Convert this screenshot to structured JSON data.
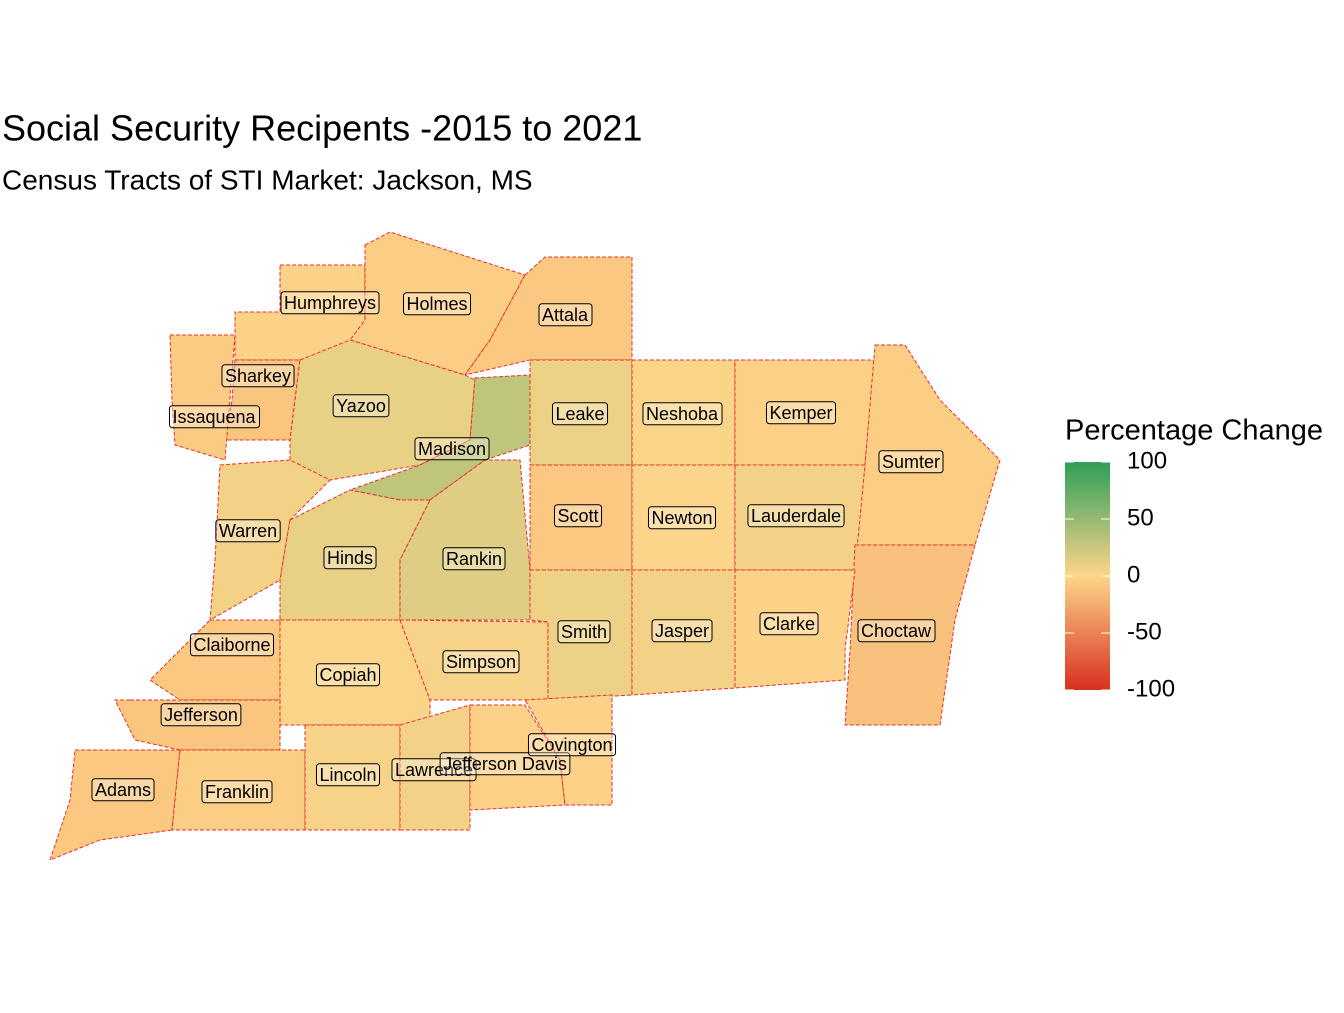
{
  "title": "Social Security Recipents -2015 to 2021",
  "subtitle": "Census Tracts of STI Market: Jackson, MS",
  "legend": {
    "title": "Percentage Change",
    "lim": [
      -100,
      100
    ],
    "ticks": [
      100,
      50,
      0,
      -50,
      -100
    ],
    "colors": {
      "low": "#d7301f",
      "mid": "#fdd58a",
      "high": "#2e9e58"
    }
  },
  "counties": [
    {
      "name": "Humphreys",
      "change": -2
    },
    {
      "name": "Holmes",
      "change": -5
    },
    {
      "name": "Attala",
      "change": -8
    },
    {
      "name": "Sharkey",
      "change": -10
    },
    {
      "name": "Issaquena",
      "change": -6
    },
    {
      "name": "Yazoo",
      "change": 10
    },
    {
      "name": "Madison",
      "change": 30
    },
    {
      "name": "Leake",
      "change": 8
    },
    {
      "name": "Neshoba",
      "change": 2
    },
    {
      "name": "Kemper",
      "change": -3
    },
    {
      "name": "Sumter",
      "change": -5
    },
    {
      "name": "Scott",
      "change": -8
    },
    {
      "name": "Newton",
      "change": 0
    },
    {
      "name": "Lauderdale",
      "change": 5
    },
    {
      "name": "Choctaw",
      "change": -12
    },
    {
      "name": "Warren",
      "change": 5
    },
    {
      "name": "Hinds",
      "change": 10
    },
    {
      "name": "Rankin",
      "change": 15
    },
    {
      "name": "Claiborne",
      "change": -8
    },
    {
      "name": "Copiah",
      "change": 2
    },
    {
      "name": "Simpson",
      "change": 3
    },
    {
      "name": "Smith",
      "change": 8
    },
    {
      "name": "Jasper",
      "change": 5
    },
    {
      "name": "Clarke",
      "change": -2
    },
    {
      "name": "Jefferson",
      "change": -10
    },
    {
      "name": "Adams",
      "change": -8
    },
    {
      "name": "Franklin",
      "change": -4
    },
    {
      "name": "Lincoln",
      "change": 3
    },
    {
      "name": "Lawrence",
      "change": 5
    },
    {
      "name": "Jefferson Davis",
      "change": -3
    },
    {
      "name": "Covington",
      "change": -2
    }
  ]
}
